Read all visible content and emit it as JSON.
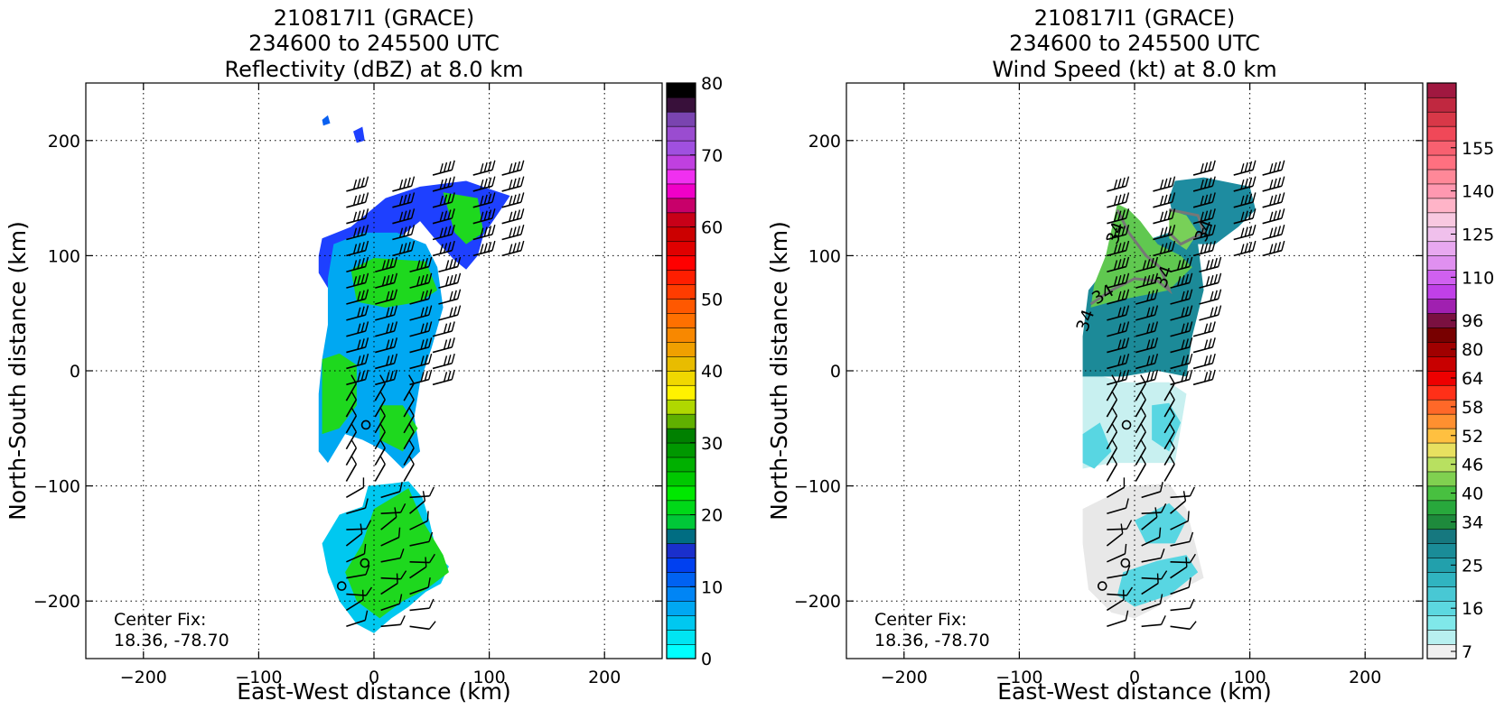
{
  "chart_data": [
    {
      "type": "heatmap",
      "title_lines": [
        "210817I1 (GRACE)",
        "234600 to 245500 UTC",
        "Reflectivity (dBZ) at 8.0 km"
      ],
      "xlabel": "East-West distance (km)",
      "ylabel": "North-South distance (km)",
      "xlim": [
        -250,
        250
      ],
      "ylim": [
        -250,
        250
      ],
      "xticks": [
        -200,
        -100,
        0,
        100,
        200
      ],
      "yticks": [
        -200,
        -100,
        0,
        100,
        200
      ],
      "xtick_labels": [
        "−200",
        "−100",
        "0",
        "100",
        "200"
      ],
      "ytick_labels": [
        "−200",
        "−100",
        "0",
        "100",
        "200"
      ],
      "grid": true,
      "annotation_lines": [
        "Center Fix:",
        "18.36, -78.70"
      ],
      "colorbar": {
        "min": 0,
        "max": 80,
        "tick_values": [
          0,
          10,
          20,
          30,
          40,
          50,
          60,
          70,
          80
        ],
        "tick_labels": [
          "0",
          "10",
          "20",
          "30",
          "40",
          "50",
          "60",
          "70",
          "80"
        ],
        "colors": [
          "#00ffff",
          "#00e5f2",
          "#00c8f0",
          "#00a8f2",
          "#0085f5",
          "#0062f2",
          "#0040f0",
          "#1a2fcc",
          "#006d82",
          "#00c838",
          "#00d818",
          "#00e800",
          "#00c800",
          "#00b000",
          "#009800",
          "#008000",
          "#60b000",
          "#b0d800",
          "#fff200",
          "#f0d800",
          "#e8bc00",
          "#f0a000",
          "#f88800",
          "#ff7000",
          "#ff5800",
          "#ff3c00",
          "#ff1e00",
          "#ff0000",
          "#e00000",
          "#cc0000",
          "#c80018",
          "#c8006a",
          "#f000c8",
          "#f030f0",
          "#c040e0",
          "#a050e0",
          "#9a4cd0",
          "#7a44b0",
          "#38103a",
          "#000000"
        ]
      },
      "rain_regions": [
        {
          "name": "north-band",
          "polygon": [
            [
              -45,
              115
            ],
            [
              -20,
              125
            ],
            [
              10,
              150
            ],
            [
              40,
              160
            ],
            [
              80,
              165
            ],
            [
              100,
              158
            ],
            [
              118,
              152
            ],
            [
              110,
              140
            ],
            [
              95,
              118
            ],
            [
              90,
              100
            ],
            [
              80,
              88
            ],
            [
              70,
              96
            ],
            [
              55,
              112
            ],
            [
              40,
              130
            ],
            [
              25,
              118
            ],
            [
              15,
              100
            ],
            [
              5,
              95
            ],
            [
              -5,
              85
            ],
            [
              -25,
              78
            ],
            [
              -40,
              72
            ],
            [
              -48,
              85
            ],
            [
              -48,
              100
            ]
          ]
        },
        {
          "name": "main-core",
          "polygon": [
            [
              -35,
              110
            ],
            [
              -10,
              120
            ],
            [
              20,
              120
            ],
            [
              45,
              110
            ],
            [
              55,
              90
            ],
            [
              60,
              55
            ],
            [
              50,
              20
            ],
            [
              40,
              -10
            ],
            [
              35,
              -40
            ],
            [
              40,
              -70
            ],
            [
              25,
              -85
            ],
            [
              10,
              -70
            ],
            [
              -10,
              -60
            ],
            [
              -25,
              -55
            ],
            [
              -40,
              -80
            ],
            [
              -48,
              -70
            ],
            [
              -48,
              -20
            ],
            [
              -45,
              10
            ],
            [
              -40,
              40
            ],
            [
              -40,
              80
            ]
          ]
        },
        {
          "name": "south-band",
          "polygon": [
            [
              -5,
              -100
            ],
            [
              15,
              -98
            ],
            [
              30,
              -96
            ],
            [
              42,
              -110
            ],
            [
              48,
              -130
            ],
            [
              55,
              -160
            ],
            [
              65,
              -170
            ],
            [
              58,
              -185
            ],
            [
              45,
              -192
            ],
            [
              30,
              -205
            ],
            [
              15,
              -215
            ],
            [
              0,
              -228
            ],
            [
              -15,
              -220
            ],
            [
              -30,
              -200
            ],
            [
              -40,
              -175
            ],
            [
              -45,
              -150
            ],
            [
              -30,
              -125
            ],
            [
              -10,
              -118
            ]
          ]
        },
        {
          "name": "outlier-north",
          "polygon": [
            [
              -45,
              218
            ],
            [
              -40,
              222
            ],
            [
              -38,
              215
            ],
            [
              -44,
              213
            ]
          ]
        },
        {
          "name": "outlier-north-2",
          "polygon": [
            [
              -18,
              208
            ],
            [
              -10,
              212
            ],
            [
              -8,
              200
            ],
            [
              -15,
              198
            ]
          ]
        }
      ],
      "green_regions": [
        {
          "name": "north-green",
          "polygon": [
            [
              60,
              155
            ],
            [
              90,
              150
            ],
            [
              95,
              120
            ],
            [
              80,
              110
            ],
            [
              70,
              120
            ]
          ]
        },
        {
          "name": "core-green-1",
          "polygon": [
            [
              -20,
              88
            ],
            [
              0,
              98
            ],
            [
              45,
              95
            ],
            [
              55,
              70
            ],
            [
              40,
              60
            ],
            [
              10,
              55
            ],
            [
              -15,
              60
            ]
          ]
        },
        {
          "name": "core-green-2",
          "polygon": [
            [
              -45,
              10
            ],
            [
              -30,
              15
            ],
            [
              -15,
              5
            ],
            [
              -15,
              -30
            ],
            [
              -30,
              -50
            ],
            [
              -45,
              -55
            ]
          ]
        },
        {
          "name": "core-green-3",
          "polygon": [
            [
              5,
              -30
            ],
            [
              25,
              -30
            ],
            [
              38,
              -50
            ],
            [
              25,
              -70
            ],
            [
              5,
              -60
            ]
          ]
        },
        {
          "name": "south-green",
          "polygon": [
            [
              0,
              -120
            ],
            [
              30,
              -102
            ],
            [
              42,
              -130
            ],
            [
              60,
              -160
            ],
            [
              65,
              -175
            ],
            [
              45,
              -190
            ],
            [
              25,
              -200
            ],
            [
              5,
              -215
            ],
            [
              -15,
              -200
            ],
            [
              -25,
              -175
            ],
            [
              -10,
              -150
            ]
          ]
        }
      ],
      "center_markers": [
        [
          -7,
          -47
        ],
        [
          -8,
          -167
        ],
        [
          -28,
          -187
        ]
      ]
    },
    {
      "type": "heatmap",
      "title_lines": [
        "210817I1 (GRACE)",
        "234600 to 245500 UTC",
        "Wind Speed (kt) at 8.0 km"
      ],
      "xlabel": "East-West distance (km)",
      "ylabel": "North-South distance (km)",
      "xlim": [
        -250,
        250
      ],
      "ylim": [
        -250,
        250
      ],
      "xticks": [
        -200,
        -100,
        0,
        100,
        200
      ],
      "yticks": [
        -200,
        -100,
        0,
        100,
        200
      ],
      "xtick_labels": [
        "−200",
        "−100",
        "0",
        "100",
        "200"
      ],
      "ytick_labels": [
        "−200",
        "−100",
        "0",
        "100",
        "200"
      ],
      "grid": true,
      "annotation_lines": [
        "Center Fix:",
        "18.36, -78.70"
      ],
      "contour_labels": [
        "34",
        "34",
        "34",
        "34",
        "34"
      ],
      "colorbar": {
        "tick_labels": [
          "7",
          "16",
          "25",
          "34",
          "40",
          "46",
          "52",
          "58",
          "64",
          "80",
          "96",
          "110",
          "125",
          "140",
          "155"
        ],
        "colors": [
          "#f0f0f0",
          "#b8f0f0",
          "#80e8ea",
          "#5cd8e0",
          "#48c8d4",
          "#30b4c0",
          "#22a0ac",
          "#1a8c98",
          "#16787f",
          "#1e8a3c",
          "#28a83c",
          "#48c040",
          "#80d050",
          "#b8e060",
          "#e8e060",
          "#ffc040",
          "#ff9030",
          "#ff6828",
          "#ff3018",
          "#ee0000",
          "#c80000",
          "#a00000",
          "#780000",
          "#7a1040",
          "#a020b0",
          "#c040e8",
          "#d060f0",
          "#e090f0",
          "#e8a8f0",
          "#f0c0ec",
          "#f8c8e0",
          "#ffb4c8",
          "#ff98b0",
          "#ff8898",
          "#ff7080",
          "#f86070",
          "#f04858",
          "#d83848",
          "#c02840",
          "#a01840"
        ],
        "label_positions": [
          0,
          3,
          6,
          9,
          11,
          13,
          15,
          17,
          19,
          21,
          23,
          26,
          29,
          32,
          35
        ]
      },
      "wind_regions": [
        {
          "name": "low-south",
          "polygon": [
            [
              -45,
              -120
            ],
            [
              -5,
              -100
            ],
            [
              30,
              -98
            ],
            [
              45,
              -120
            ],
            [
              55,
              -160
            ],
            [
              60,
              -180
            ],
            [
              40,
              -190
            ],
            [
              20,
              -205
            ],
            [
              0,
              -215
            ],
            [
              -20,
              -210
            ],
            [
              -40,
              -190
            ],
            [
              -45,
              -150
            ]
          ]
        },
        {
          "name": "low-mid",
          "polygon": [
            [
              -45,
              0
            ],
            [
              -10,
              -10
            ],
            [
              30,
              -10
            ],
            [
              45,
              -20
            ],
            [
              40,
              -50
            ],
            [
              35,
              -80
            ],
            [
              10,
              -80
            ],
            [
              -20,
              -80
            ],
            [
              -45,
              -85
            ],
            [
              -45,
              -40
            ]
          ]
        },
        {
          "name": "mid-main",
          "polygon": [
            [
              -40,
              70
            ],
            [
              -20,
              95
            ],
            [
              0,
              110
            ],
            [
              30,
              120
            ],
            [
              55,
              110
            ],
            [
              60,
              70
            ],
            [
              50,
              30
            ],
            [
              45,
              -5
            ],
            [
              20,
              0
            ],
            [
              -10,
              -5
            ],
            [
              -45,
              -5
            ],
            [
              -45,
              30
            ]
          ]
        },
        {
          "name": "mid-north",
          "polygon": [
            [
              35,
              165
            ],
            [
              60,
              168
            ],
            [
              100,
              160
            ],
            [
              105,
              140
            ],
            [
              90,
              125
            ],
            [
              70,
              110
            ],
            [
              50,
              110
            ],
            [
              35,
              125
            ],
            [
              30,
              150
            ]
          ]
        },
        {
          "name": "green-north",
          "polygon": [
            [
              -15,
              145
            ],
            [
              -5,
              140
            ],
            [
              5,
              130
            ],
            [
              20,
              110
            ],
            [
              40,
              100
            ],
            [
              50,
              90
            ],
            [
              30,
              70
            ],
            [
              5,
              65
            ],
            [
              -20,
              60
            ],
            [
              -38,
              55
            ],
            [
              -35,
              75
            ],
            [
              -25,
              100
            ]
          ]
        },
        {
          "name": "green-north-2",
          "polygon": [
            [
              30,
              140
            ],
            [
              45,
              135
            ],
            [
              55,
              120
            ],
            [
              45,
              105
            ],
            [
              30,
              115
            ]
          ]
        }
      ],
      "cyan_patches": [
        {
          "name": "cyan-1",
          "polygon": [
            [
              -45,
              -55
            ],
            [
              -30,
              -45
            ],
            [
              -20,
              -70
            ],
            [
              -35,
              -85
            ],
            [
              -45,
              -80
            ]
          ]
        },
        {
          "name": "cyan-2",
          "polygon": [
            [
              15,
              -30
            ],
            [
              30,
              -28
            ],
            [
              40,
              -45
            ],
            [
              30,
              -70
            ],
            [
              15,
              -60
            ]
          ]
        },
        {
          "name": "cyan-3",
          "polygon": [
            [
              0,
              -130
            ],
            [
              30,
              -115
            ],
            [
              45,
              -130
            ],
            [
              35,
              -150
            ],
            [
              10,
              -150
            ]
          ]
        },
        {
          "name": "cyan-4",
          "polygon": [
            [
              -10,
              -175
            ],
            [
              20,
              -165
            ],
            [
              45,
              -160
            ],
            [
              55,
              -175
            ],
            [
              30,
              -195
            ],
            [
              0,
              -205
            ],
            [
              -15,
              -195
            ]
          ]
        }
      ],
      "center_markers": [
        [
          -7,
          -47
        ],
        [
          -8,
          -167
        ],
        [
          -28,
          -187
        ]
      ]
    }
  ]
}
